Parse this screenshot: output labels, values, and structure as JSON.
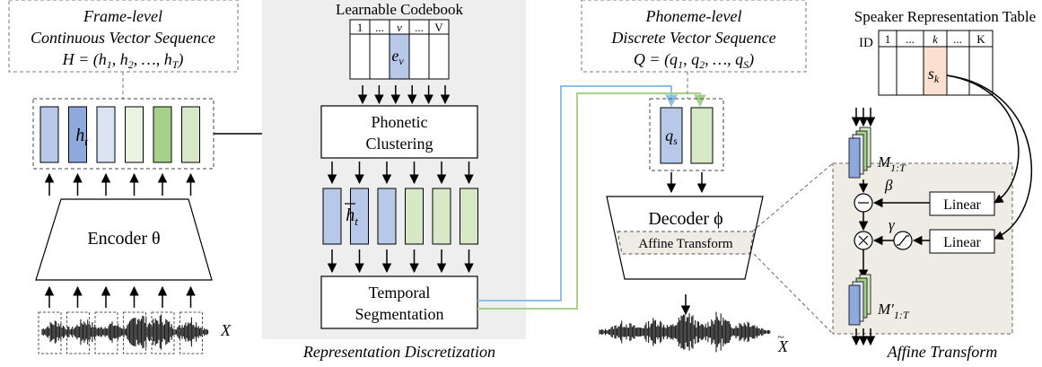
{
  "left_label": {
    "title": "Frame-level",
    "subtitle": "Continuous Vector Sequence",
    "formula": "H = (h1, h2, ..., hT)"
  },
  "frame_vector_label": "h_t",
  "encoder_label": "Encoder θ",
  "input_label": "X",
  "codebook": {
    "title": "Learnable Codebook",
    "indices": [
      "1",
      "...",
      "v",
      "...",
      "V"
    ],
    "entry_label": "e_v"
  },
  "phonetic_clustering": {
    "line1": "Phonetic",
    "line2": "Clustering"
  },
  "quantized_vector_label": "h̄_t",
  "temporal_segmentation": {
    "line1": "Temporal",
    "line2": "Segmentation"
  },
  "middle_caption": "Representation Discretization",
  "phoneme_label": {
    "title": "Phoneme-level",
    "subtitle": "Discrete Vector Sequence",
    "formula": "Q = (q1, q2, ..., qS)"
  },
  "phoneme_vector_label": "q_s",
  "decoder_label": "Decoder ϕ",
  "affine_inner_label": "Affine Transform",
  "output_label": "X̃",
  "speaker_table": {
    "title": "Speaker Representation Table",
    "id_label": "ID",
    "indices": [
      "1",
      "...",
      "k",
      "...",
      "K"
    ],
    "entry_label": "s_k"
  },
  "affine_panel": {
    "m_label": "M_{1:T}",
    "m_prime_label": "M'_{1:T}",
    "beta": "β",
    "gamma": "γ",
    "linear1": "Linear",
    "linear2": "Linear",
    "caption": "Affine Transform"
  },
  "colors": {
    "blue": "#b7c8e8",
    "blue_dark": "#8fa9dc",
    "blue_light": "#dbe4f5",
    "green": "#d6e8c6",
    "green_dark": "#a8d08d",
    "green_light": "#eaf3e0",
    "panel_gray": "#eeeeee",
    "affine_panel": "#efece6",
    "speaker_entry": "#fbe0cf",
    "line_blue": "#8fbfe6",
    "line_green": "#a8d08d"
  }
}
